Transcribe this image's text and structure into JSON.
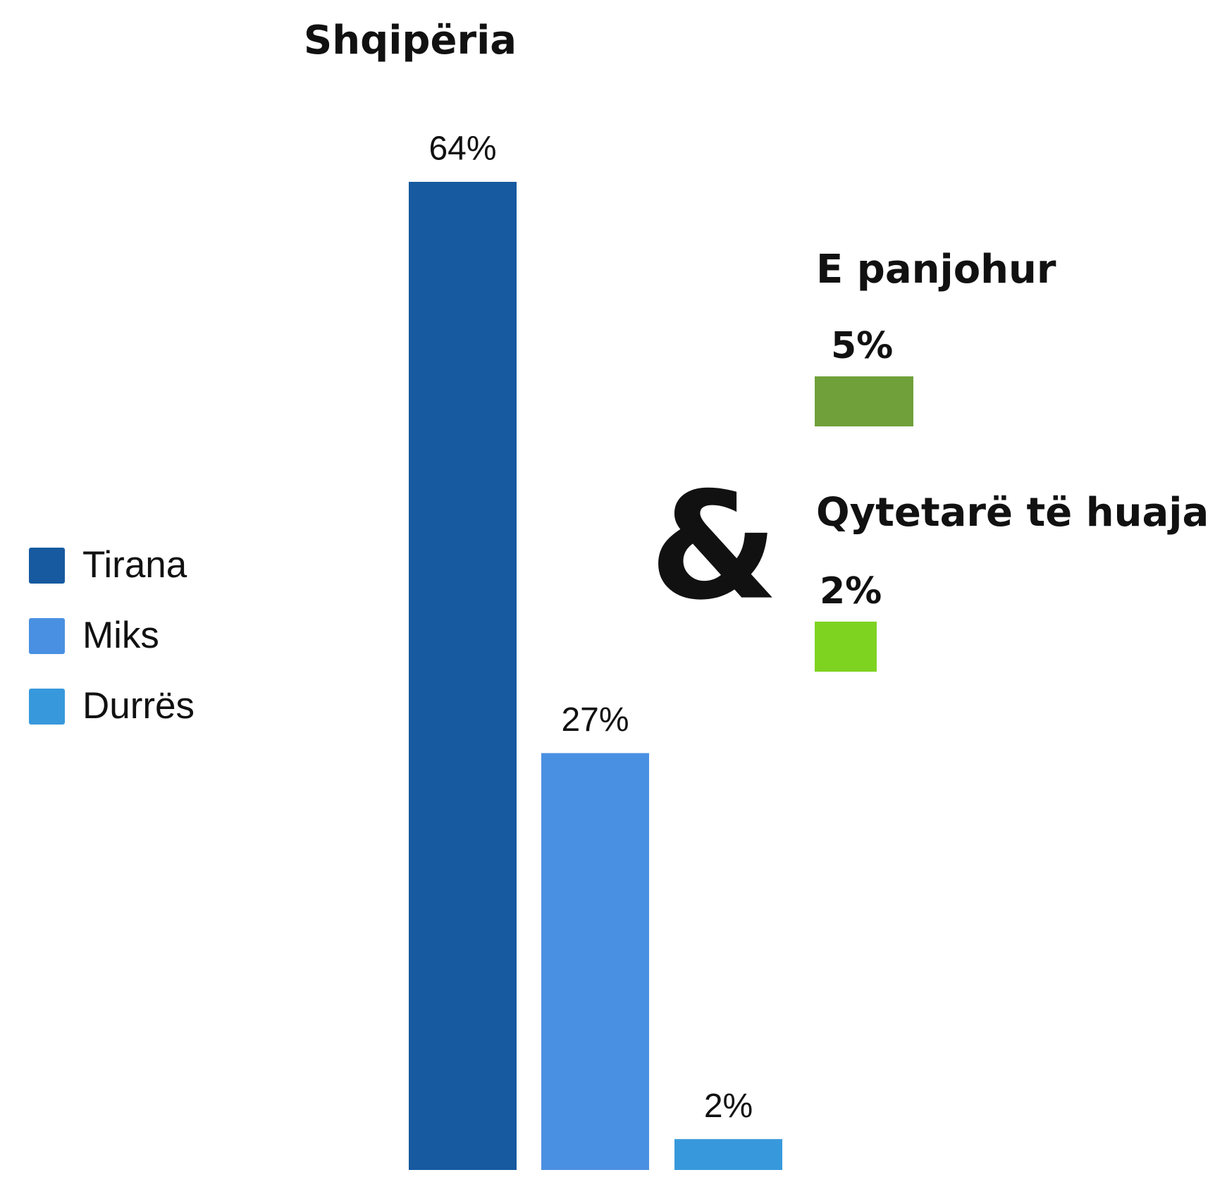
{
  "chart_data": [
    {
      "type": "bar",
      "title": "Shqipëria",
      "categories": [
        "Tirana",
        "Miks",
        "Durrës"
      ],
      "values": [
        64,
        27,
        2
      ],
      "value_labels": [
        "64%",
        "27%",
        "2%"
      ],
      "colors": [
        "#175aa0",
        "#4a90e2",
        "#3799dc"
      ],
      "legend": "left"
    },
    {
      "type": "bar",
      "categories": [
        "E panjohur",
        "Qytetarë të huaja"
      ],
      "values": [
        5,
        2
      ],
      "value_labels": [
        "5%",
        "2%"
      ],
      "colors": [
        "#6fa03a",
        "#7ed321"
      ]
    }
  ],
  "connector": "&"
}
